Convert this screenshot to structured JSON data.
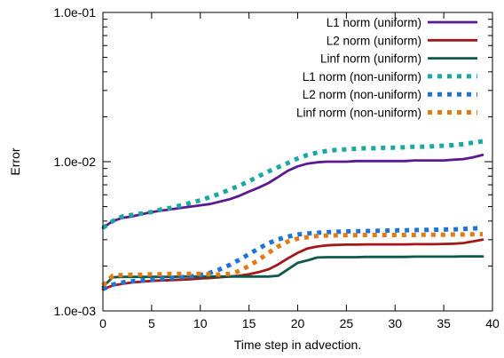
{
  "chart_data": {
    "type": "line",
    "title": "",
    "xlabel": "Time step in advection.",
    "ylabel": "Error",
    "xlim": [
      0,
      40
    ],
    "ylim": [
      0.001,
      0.1
    ],
    "yscale": "log",
    "xticks": [
      "0",
      "5",
      "10",
      "15",
      "20",
      "25",
      "30",
      "35",
      "40"
    ],
    "yticks": [
      "1.0e-03",
      "1.0e-02",
      "1.0e-01"
    ],
    "grid": false,
    "legend_position": "top-right",
    "series": [
      {
        "name": "L1 norm (uniform)",
        "color": "#5b1a8f",
        "style": "solid",
        "x": [
          0,
          1,
          2,
          3,
          4,
          5,
          6,
          7,
          8,
          9,
          10,
          11,
          12,
          13,
          14,
          15,
          16,
          17,
          18,
          19,
          20,
          21,
          22,
          23,
          24,
          25,
          26,
          27,
          28,
          29,
          30,
          31,
          32,
          33,
          34,
          35,
          36,
          37,
          38,
          39
        ],
        "y": [
          0.0036,
          0.004,
          0.0042,
          0.0043,
          0.00445,
          0.0046,
          0.0047,
          0.0048,
          0.0049,
          0.005,
          0.0051,
          0.0052,
          0.0054,
          0.0056,
          0.0059,
          0.0063,
          0.0067,
          0.0072,
          0.0079,
          0.0087,
          0.0093,
          0.0097,
          0.0099,
          0.01,
          0.01,
          0.01,
          0.0101,
          0.0101,
          0.0101,
          0.0101,
          0.0101,
          0.0101,
          0.0102,
          0.0102,
          0.0102,
          0.0102,
          0.0103,
          0.0104,
          0.0107,
          0.0111
        ]
      },
      {
        "name": "L2 norm (uniform)",
        "color": "#a11818",
        "style": "solid",
        "x": [
          0,
          1,
          2,
          3,
          4,
          5,
          6,
          7,
          8,
          9,
          10,
          11,
          12,
          13,
          14,
          15,
          16,
          17,
          18,
          19,
          20,
          21,
          22,
          23,
          24,
          25,
          26,
          27,
          28,
          29,
          30,
          31,
          32,
          33,
          34,
          35,
          36,
          37,
          38,
          39
        ],
        "y": [
          0.0014,
          0.00148,
          0.00152,
          0.00155,
          0.00157,
          0.00159,
          0.0016,
          0.00161,
          0.00162,
          0.00163,
          0.00165,
          0.00166,
          0.00168,
          0.0017,
          0.00172,
          0.00176,
          0.00182,
          0.0019,
          0.00205,
          0.00225,
          0.00245,
          0.00262,
          0.0027,
          0.00275,
          0.00277,
          0.00278,
          0.00278,
          0.00279,
          0.00279,
          0.00279,
          0.00279,
          0.00279,
          0.0028,
          0.0028,
          0.0028,
          0.00281,
          0.00282,
          0.00285,
          0.00292,
          0.003
        ]
      },
      {
        "name": "Linf norm (uniform)",
        "color": "#0d5a4a",
        "style": "solid",
        "x": [
          0,
          1,
          2,
          3,
          4,
          5,
          6,
          7,
          8,
          9,
          10,
          11,
          12,
          13,
          14,
          15,
          16,
          17,
          18,
          19,
          20,
          21,
          22,
          23,
          24,
          25,
          26,
          27,
          28,
          29,
          30,
          31,
          32,
          33,
          34,
          35,
          36,
          37,
          38,
          39
        ],
        "y": [
          0.00145,
          0.00168,
          0.00169,
          0.00169,
          0.00169,
          0.00169,
          0.00169,
          0.00169,
          0.0017,
          0.0017,
          0.0017,
          0.0017,
          0.0017,
          0.0017,
          0.0017,
          0.0017,
          0.0017,
          0.0017,
          0.00172,
          0.0019,
          0.0021,
          0.00218,
          0.00228,
          0.00229,
          0.00229,
          0.00229,
          0.00229,
          0.0023,
          0.0023,
          0.0023,
          0.0023,
          0.0023,
          0.00231,
          0.00231,
          0.00231,
          0.00231,
          0.00231,
          0.00232,
          0.00232,
          0.00232
        ]
      },
      {
        "name": "L1 norm (non-uniform)",
        "color": "#1aa89f",
        "style": "dotted",
        "x": [
          0,
          1,
          2,
          3,
          4,
          5,
          6,
          7,
          8,
          9,
          10,
          11,
          12,
          13,
          14,
          15,
          16,
          17,
          18,
          19,
          20,
          21,
          22,
          23,
          24,
          25,
          26,
          27,
          28,
          29,
          30,
          31,
          32,
          33,
          34,
          35,
          36,
          37,
          38,
          39
        ],
        "y": [
          0.0036,
          0.004,
          0.0043,
          0.0044,
          0.0045,
          0.0046,
          0.0048,
          0.0049,
          0.0051,
          0.0053,
          0.0055,
          0.0058,
          0.0061,
          0.0065,
          0.0069,
          0.0074,
          0.008,
          0.0086,
          0.0092,
          0.0098,
          0.0105,
          0.0111,
          0.0115,
          0.0118,
          0.012,
          0.0121,
          0.0122,
          0.0123,
          0.0123,
          0.0124,
          0.0124,
          0.0125,
          0.0126,
          0.0126,
          0.0127,
          0.0128,
          0.0129,
          0.0131,
          0.0134,
          0.0137
        ]
      },
      {
        "name": "L2 norm (non-uniform)",
        "color": "#1e73d8",
        "style": "dotted",
        "x": [
          0,
          1,
          2,
          3,
          4,
          5,
          6,
          7,
          8,
          9,
          10,
          11,
          12,
          13,
          14,
          15,
          16,
          17,
          18,
          19,
          20,
          21,
          22,
          23,
          24,
          25,
          26,
          27,
          28,
          29,
          30,
          31,
          32,
          33,
          34,
          35,
          36,
          37,
          38,
          39
        ],
        "y": [
          0.0014,
          0.0015,
          0.00155,
          0.00158,
          0.0016,
          0.00162,
          0.00164,
          0.00166,
          0.00168,
          0.0017,
          0.00174,
          0.0018,
          0.0019,
          0.00203,
          0.0022,
          0.0024,
          0.00262,
          0.00284,
          0.00302,
          0.00315,
          0.00325,
          0.0033,
          0.00334,
          0.00337,
          0.00339,
          0.00341,
          0.00342,
          0.00343,
          0.00344,
          0.00345,
          0.00346,
          0.00347,
          0.00348,
          0.00349,
          0.0035,
          0.00351,
          0.00352,
          0.00354,
          0.00357,
          0.0036
        ]
      },
      {
        "name": "Linf norm (non-uniform)",
        "color": "#e07b16",
        "style": "dotted",
        "x": [
          0,
          1,
          2,
          3,
          4,
          5,
          6,
          7,
          8,
          9,
          10,
          11,
          12,
          13,
          14,
          15,
          16,
          17,
          18,
          19,
          20,
          21,
          22,
          23,
          24,
          25,
          26,
          27,
          28,
          29,
          30,
          31,
          32,
          33,
          34,
          35,
          36,
          37,
          38,
          39
        ],
        "y": [
          0.00148,
          0.00172,
          0.00174,
          0.00175,
          0.00175,
          0.00176,
          0.00176,
          0.00177,
          0.00177,
          0.00177,
          0.00177,
          0.00176,
          0.00175,
          0.00177,
          0.00185,
          0.002,
          0.0022,
          0.00245,
          0.0027,
          0.00292,
          0.00305,
          0.00312,
          0.00318,
          0.0032,
          0.00321,
          0.00322,
          0.00322,
          0.00323,
          0.00323,
          0.00323,
          0.00323,
          0.00323,
          0.00323,
          0.00324,
          0.00324,
          0.00324,
          0.00325,
          0.00325,
          0.00326,
          0.00327
        ]
      }
    ]
  }
}
